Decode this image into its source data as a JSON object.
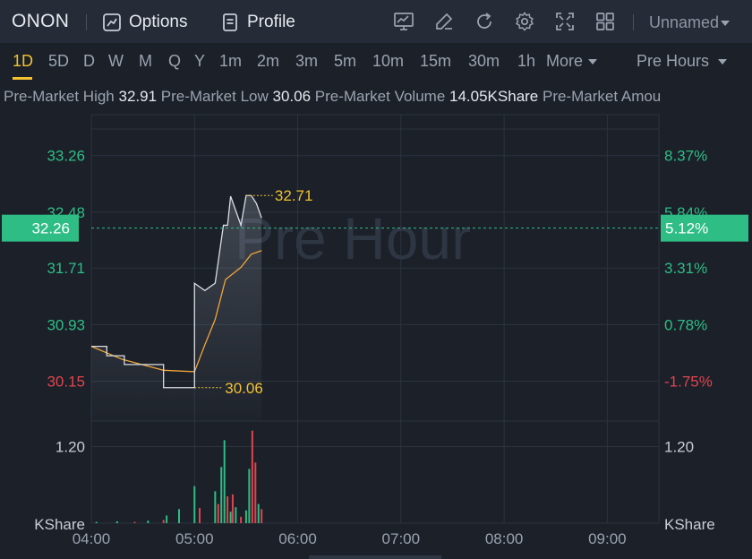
{
  "toolbar": {
    "symbol": "ONON",
    "options_label": "Options",
    "profile_label": "Profile",
    "layout_name": "Unnamed",
    "icons": [
      "indicator-chart-icon",
      "draw-pen-icon",
      "refresh-icon",
      "settings-gear-icon",
      "fullscreen-icon",
      "layout-grid-icon"
    ]
  },
  "timeframes": [
    "1D",
    "5D",
    "D",
    "W",
    "M",
    "Q",
    "Y",
    "1m",
    "2m",
    "3m",
    "5m",
    "10m",
    "15m",
    "30m",
    "1h"
  ],
  "active_timeframe": "1D",
  "more_label": "More",
  "session_label": "Pre Hours",
  "stats": {
    "high_label": "Pre-Market High",
    "high_value": "32.91",
    "low_label": "Pre-Market Low",
    "low_value": "30.06",
    "volume_label": "Pre-Market Volume",
    "volume_value": "14.05KShare",
    "amount_label": "Pre-Market Amou"
  },
  "colors": {
    "up": "#2ebd85",
    "down": "#e0444f",
    "price_line": "#d9dde3",
    "avg_line": "#f0a53a",
    "annotation": "#f2c230",
    "current_price_bg": "#2ebd85"
  },
  "chart_data": {
    "type": "line",
    "watermark": "Pre Hour",
    "x_ticks": [
      "04:00",
      "05:00",
      "06:00",
      "07:00",
      "08:00",
      "09:00"
    ],
    "price_ticks_left": [
      "33.26",
      "32.48",
      "31.71",
      "30.93",
      "30.15"
    ],
    "percent_ticks_right": [
      "8.37%",
      "5.84%",
      "3.31%",
      "0.78%",
      "-1.75%"
    ],
    "current_price": "32.26",
    "current_percent": "5.12%",
    "max_label": "32.71",
    "min_label": "30.06",
    "volume_tick_left": "1.20",
    "volume_tick_right": "1.20",
    "volume_unit_left": "KShare",
    "volume_unit_right": "KShare",
    "price_series": [
      [
        4.0,
        30.63
      ],
      [
        4.15,
        30.63
      ],
      [
        4.15,
        30.5
      ],
      [
        4.32,
        30.5
      ],
      [
        4.32,
        30.38
      ],
      [
        4.7,
        30.38
      ],
      [
        4.7,
        30.06
      ],
      [
        5.0,
        30.06
      ],
      [
        5.0,
        31.5
      ],
      [
        5.1,
        31.4
      ],
      [
        5.2,
        31.5
      ],
      [
        5.28,
        32.3
      ],
      [
        5.32,
        32.3
      ],
      [
        5.35,
        32.7
      ],
      [
        5.4,
        32.5
      ],
      [
        5.45,
        32.3
      ],
      [
        5.5,
        32.71
      ],
      [
        5.55,
        32.71
      ],
      [
        5.6,
        32.6
      ],
      [
        5.65,
        32.4
      ]
    ],
    "avg_series": [
      [
        4.0,
        30.63
      ],
      [
        4.3,
        30.45
      ],
      [
        4.7,
        30.3
      ],
      [
        5.0,
        30.28
      ],
      [
        5.1,
        30.65
      ],
      [
        5.2,
        31.0
      ],
      [
        5.3,
        31.55
      ],
      [
        5.45,
        31.72
      ],
      [
        5.55,
        31.9
      ],
      [
        5.65,
        31.95
      ]
    ],
    "volume_bars": [
      {
        "t": 4.05,
        "v": 0.02,
        "dir": "up"
      },
      {
        "t": 4.25,
        "v": 0.03,
        "dir": "up"
      },
      {
        "t": 4.42,
        "v": 0.02,
        "dir": "down"
      },
      {
        "t": 4.55,
        "v": 0.04,
        "dir": "up"
      },
      {
        "t": 4.7,
        "v": 0.05,
        "dir": "down"
      },
      {
        "t": 4.73,
        "v": 0.12,
        "dir": "up"
      },
      {
        "t": 4.85,
        "v": 0.22,
        "dir": "up"
      },
      {
        "t": 5.0,
        "v": 0.58,
        "dir": "up"
      },
      {
        "t": 5.05,
        "v": 0.24,
        "dir": "down"
      },
      {
        "t": 5.2,
        "v": 0.5,
        "dir": "up"
      },
      {
        "t": 5.23,
        "v": 0.3,
        "dir": "down"
      },
      {
        "t": 5.26,
        "v": 0.88,
        "dir": "up"
      },
      {
        "t": 5.29,
        "v": 1.3,
        "dir": "up"
      },
      {
        "t": 5.32,
        "v": 0.42,
        "dir": "down"
      },
      {
        "t": 5.35,
        "v": 0.18,
        "dir": "up"
      },
      {
        "t": 5.37,
        "v": 0.45,
        "dir": "down"
      },
      {
        "t": 5.4,
        "v": 0.25,
        "dir": "up"
      },
      {
        "t": 5.45,
        "v": 0.1,
        "dir": "down"
      },
      {
        "t": 5.5,
        "v": 0.2,
        "dir": "up"
      },
      {
        "t": 5.53,
        "v": 0.85,
        "dir": "up"
      },
      {
        "t": 5.56,
        "v": 1.45,
        "dir": "down"
      },
      {
        "t": 5.59,
        "v": 0.95,
        "dir": "down"
      },
      {
        "t": 5.62,
        "v": 0.3,
        "dir": "up"
      },
      {
        "t": 5.65,
        "v": 0.22,
        "dir": "down"
      }
    ],
    "price_range": [
      29.6,
      33.8
    ],
    "volume_range": [
      0,
      1.6
    ],
    "time_range": [
      4.0,
      9.5
    ]
  }
}
